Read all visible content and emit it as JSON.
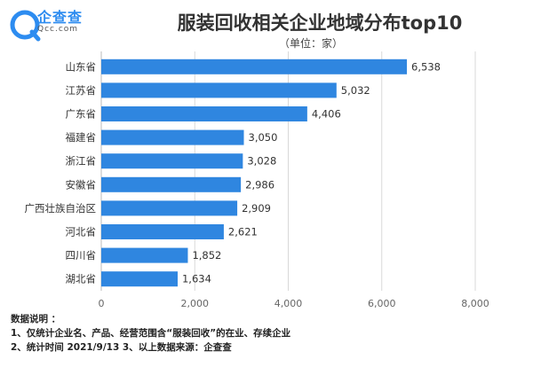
{
  "logo": {
    "name": "企查查",
    "sub": "Qcc.com"
  },
  "unit_note": "（单位：家）",
  "notes": {
    "heading": "数据说明 ：",
    "line1": "1、仅统计企业名、产品、经营范围含“服装回收”的在业、存续企业",
    "line2": "2、统计时间  2021/9/13        3、以上数据来源：企查查"
  },
  "chart_data": {
    "type": "bar",
    "orientation": "horizontal",
    "title": "服装回收相关企业地域分布top10",
    "categories": [
      "山东省",
      "江苏省",
      "广东省",
      "福建省",
      "浙江省",
      "安徽省",
      "广西壮族自治区",
      "河北省",
      "四川省",
      "湖北省"
    ],
    "values": [
      6538,
      5032,
      4406,
      3050,
      3028,
      2986,
      2909,
      2621,
      1852,
      1634
    ],
    "value_labels": [
      "6,538",
      "5,032",
      "4,406",
      "3,050",
      "3,028",
      "2,986",
      "2,909",
      "2,621",
      "1,852",
      "1,634"
    ],
    "xlim": [
      0,
      8000
    ],
    "xticks": [
      0,
      2000,
      4000,
      6000,
      8000
    ],
    "xtick_labels": [
      "0",
      "2,000",
      "4,000",
      "6,000",
      "8,000"
    ],
    "bar_color": "#2f86e0",
    "grid": true
  }
}
